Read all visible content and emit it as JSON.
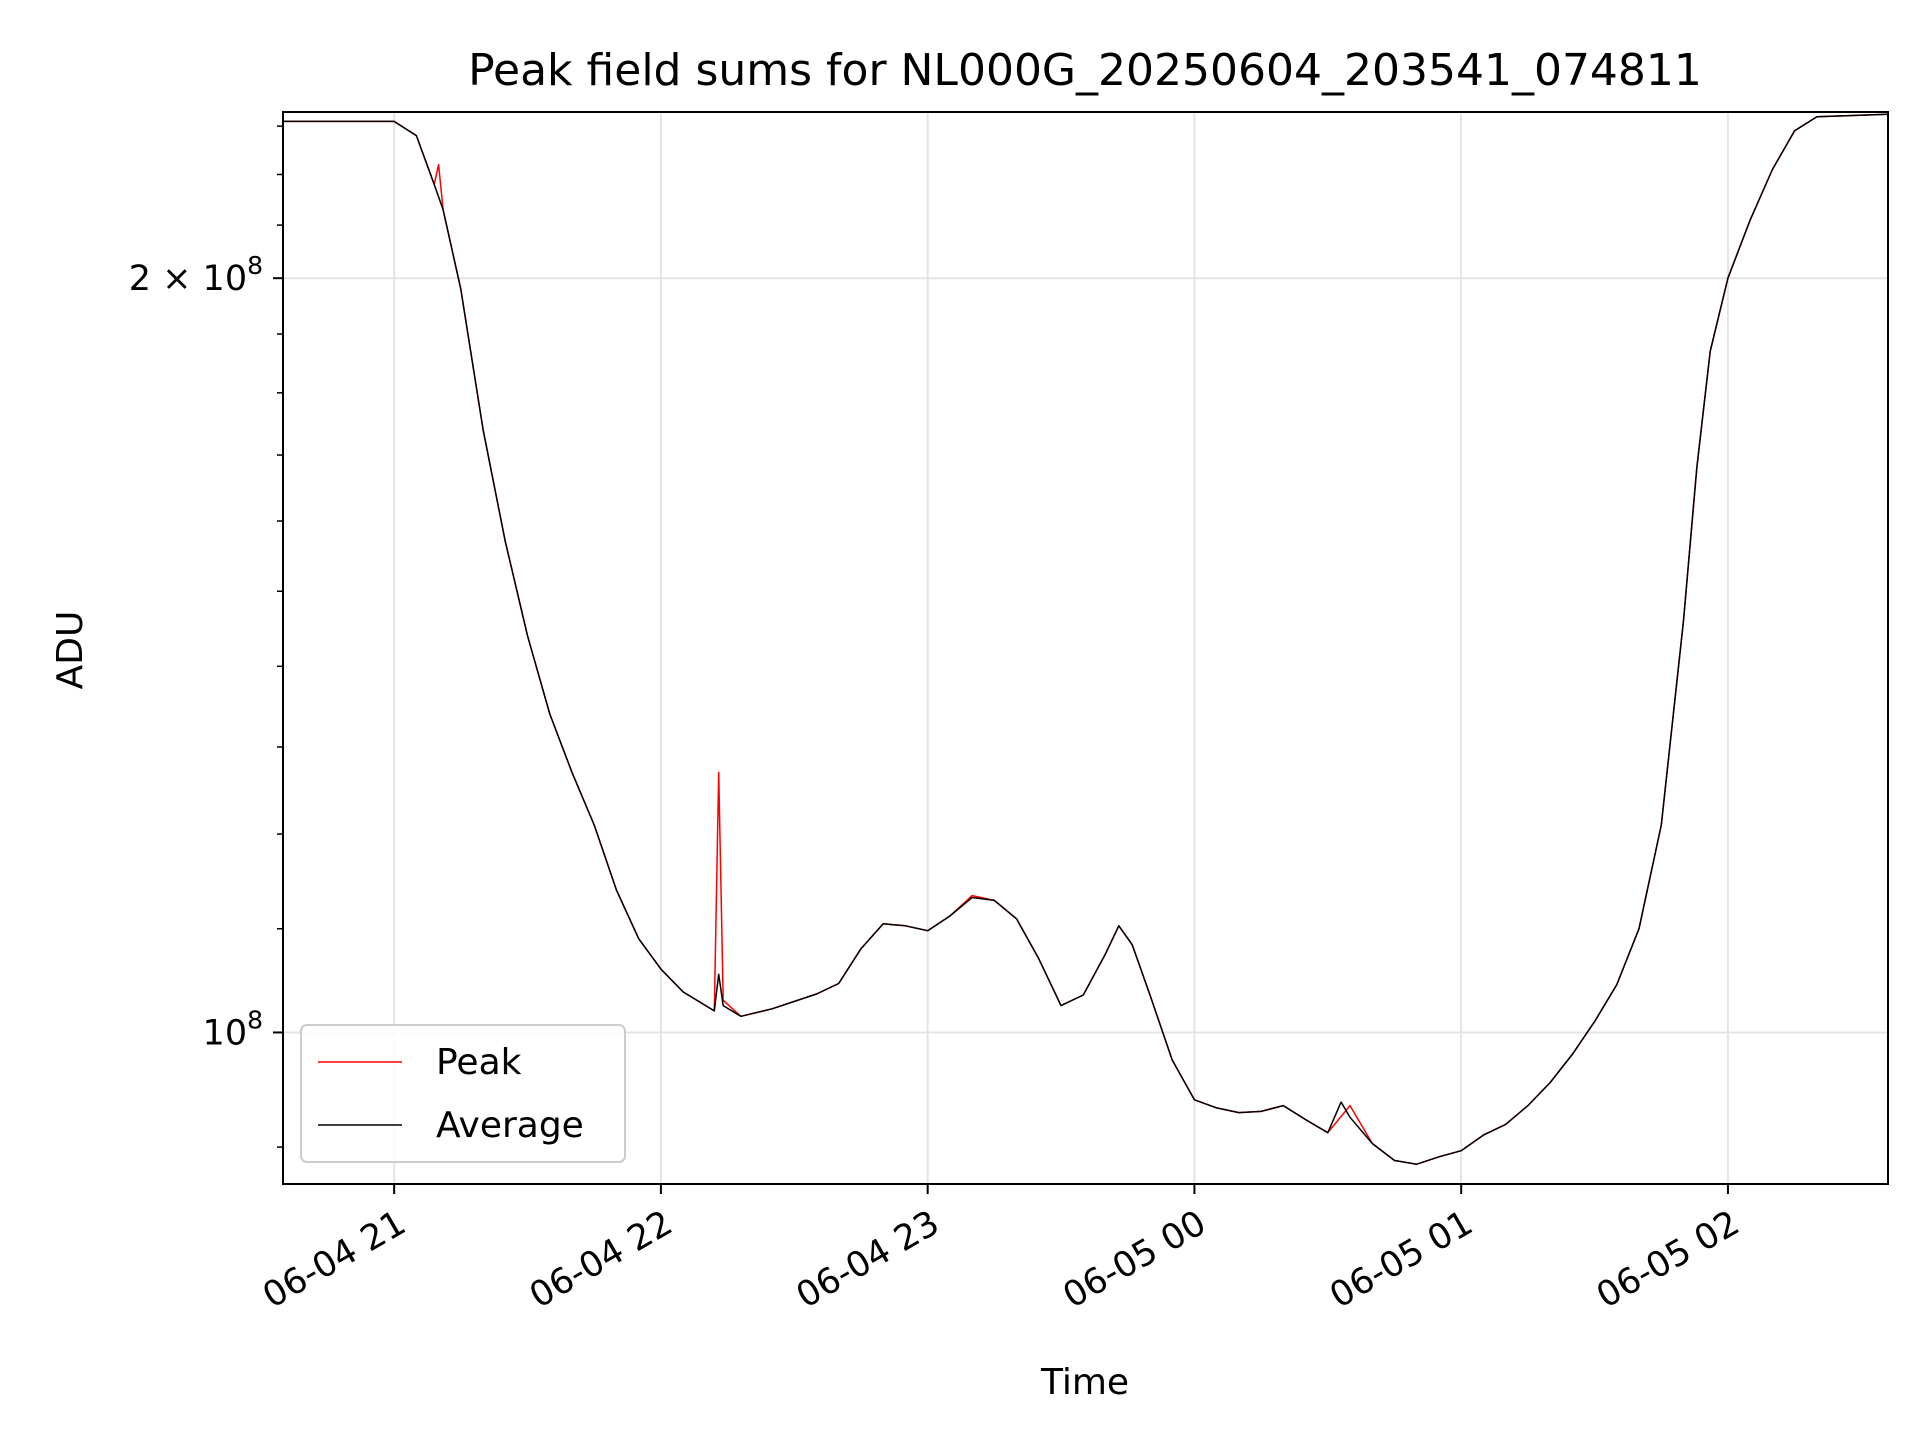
{
  "chart_data": {
    "type": "line",
    "title": "Peak field sums for NL000G_20250604_203541_074811",
    "xlabel": "Time",
    "ylabel": "ADU",
    "yscale": "log",
    "grid": true,
    "legend_position": "lower-left",
    "xlim": [
      "2025-06-04 20:35",
      "2025-06-05 02:36"
    ],
    "ylim": [
      87000000,
      233000000
    ],
    "x_ticks": [
      {
        "label": "06-04 21",
        "t": "2025-06-04 21:00"
      },
      {
        "label": "06-04 22",
        "t": "2025-06-04 22:00"
      },
      {
        "label": "06-04 23",
        "t": "2025-06-04 23:00"
      },
      {
        "label": "06-05 00",
        "t": "2025-06-05 00:00"
      },
      {
        "label": "06-05 01",
        "t": "2025-06-05 01:00"
      },
      {
        "label": "06-05 02",
        "t": "2025-06-05 02:00"
      }
    ],
    "y_ticks": [
      {
        "base": "10",
        "exp": "8",
        "coef": "",
        "value": 100000000
      },
      {
        "base": "10",
        "exp": "8",
        "coef": "2",
        "value": 200000000
      }
    ],
    "series": [
      {
        "name": "Peak",
        "color": "#ff0000",
        "points": [
          [
            "2025-06-04 20:35",
            231000000
          ],
          [
            "2025-06-04 21:00",
            231000000
          ],
          [
            "2025-06-04 21:05",
            228000000
          ],
          [
            "2025-06-04 21:09",
            218000000
          ],
          [
            "2025-06-04 21:10",
            222000000
          ],
          [
            "2025-06-04 21:11",
            213000000
          ],
          [
            "2025-06-04 21:15",
            198000000
          ],
          [
            "2025-06-04 21:20",
            174000000
          ],
          [
            "2025-06-04 21:25",
            157000000
          ],
          [
            "2025-06-04 21:30",
            144000000
          ],
          [
            "2025-06-04 21:35",
            134000000
          ],
          [
            "2025-06-04 21:40",
            127000000
          ],
          [
            "2025-06-04 21:45",
            121000000
          ],
          [
            "2025-06-04 21:50",
            114000000
          ],
          [
            "2025-06-04 21:55",
            109000000
          ],
          [
            "2025-06-04 22:00",
            106000000
          ],
          [
            "2025-06-04 22:05",
            103800000
          ],
          [
            "2025-06-04 22:12",
            102000000
          ],
          [
            "2025-06-04 22:13",
            127000000
          ],
          [
            "2025-06-04 22:14",
            103000000
          ],
          [
            "2025-06-04 22:18",
            101500000
          ],
          [
            "2025-06-04 22:25",
            102200000
          ],
          [
            "2025-06-04 22:35",
            103600000
          ],
          [
            "2025-06-04 22:40",
            104600000
          ],
          [
            "2025-06-04 22:45",
            108000000
          ],
          [
            "2025-06-04 22:50",
            110500000
          ],
          [
            "2025-06-04 22:55",
            110300000
          ],
          [
            "2025-06-04 23:00",
            109800000
          ],
          [
            "2025-06-04 23:05",
            111300000
          ],
          [
            "2025-06-04 23:10",
            113400000
          ],
          [
            "2025-06-04 23:15",
            112900000
          ],
          [
            "2025-06-04 23:20",
            111000000
          ],
          [
            "2025-06-04 23:25",
            107000000
          ],
          [
            "2025-06-04 23:30",
            102500000
          ],
          [
            "2025-06-04 23:35",
            103500000
          ],
          [
            "2025-06-04 23:40",
            107500000
          ],
          [
            "2025-06-04 23:43",
            110300000
          ],
          [
            "2025-06-04 23:46",
            108400000
          ],
          [
            "2025-06-04 23:50",
            103500000
          ],
          [
            "2025-06-04 23:55",
            97500000
          ],
          [
            "2025-06-05 00:00",
            94000000
          ],
          [
            "2025-06-05 00:05",
            93300000
          ],
          [
            "2025-06-05 00:10",
            92900000
          ],
          [
            "2025-06-05 00:15",
            93000000
          ],
          [
            "2025-06-05 00:20",
            93500000
          ],
          [
            "2025-06-05 00:25",
            92300000
          ],
          [
            "2025-06-05 00:30",
            91200000
          ],
          [
            "2025-06-05 00:35",
            93500000
          ],
          [
            "2025-06-05 00:40",
            90300000
          ],
          [
            "2025-06-05 00:45",
            88900000
          ],
          [
            "2025-06-05 00:50",
            88600000
          ],
          [
            "2025-06-05 00:55",
            89200000
          ],
          [
            "2025-06-05 01:00",
            89700000
          ],
          [
            "2025-06-05 01:05",
            91000000
          ],
          [
            "2025-06-05 01:10",
            91900000
          ],
          [
            "2025-06-05 01:15",
            93500000
          ],
          [
            "2025-06-05 01:20",
            95500000
          ],
          [
            "2025-06-05 01:25",
            98000000
          ],
          [
            "2025-06-05 01:30",
            101000000
          ],
          [
            "2025-06-05 01:35",
            104500000
          ],
          [
            "2025-06-05 01:40",
            110000000
          ],
          [
            "2025-06-05 01:45",
            121000000
          ],
          [
            "2025-06-05 01:50",
            146000000
          ],
          [
            "2025-06-05 01:53",
            168000000
          ],
          [
            "2025-06-05 01:56",
            187000000
          ],
          [
            "2025-06-05 02:00",
            200000000
          ],
          [
            "2025-06-05 02:05",
            211000000
          ],
          [
            "2025-06-05 02:10",
            221000000
          ],
          [
            "2025-06-05 02:15",
            229000000
          ],
          [
            "2025-06-05 02:20",
            232000000
          ],
          [
            "2025-06-05 02:36",
            232500000
          ]
        ]
      },
      {
        "name": "Average",
        "color": "#000000",
        "points": [
          [
            "2025-06-04 20:35",
            231000000
          ],
          [
            "2025-06-04 21:00",
            231000000
          ],
          [
            "2025-06-04 21:05",
            228000000
          ],
          [
            "2025-06-04 21:09",
            218000000
          ],
          [
            "2025-06-04 21:11",
            213000000
          ],
          [
            "2025-06-04 21:15",
            198000000
          ],
          [
            "2025-06-04 21:20",
            174000000
          ],
          [
            "2025-06-04 21:25",
            157000000
          ],
          [
            "2025-06-04 21:30",
            144000000
          ],
          [
            "2025-06-04 21:35",
            134000000
          ],
          [
            "2025-06-04 21:40",
            127000000
          ],
          [
            "2025-06-04 21:45",
            121000000
          ],
          [
            "2025-06-04 21:50",
            114000000
          ],
          [
            "2025-06-04 21:55",
            109000000
          ],
          [
            "2025-06-04 22:00",
            106000000
          ],
          [
            "2025-06-04 22:05",
            103800000
          ],
          [
            "2025-06-04 22:12",
            102000000
          ],
          [
            "2025-06-04 22:13",
            105500000
          ],
          [
            "2025-06-04 22:14",
            102500000
          ],
          [
            "2025-06-04 22:18",
            101500000
          ],
          [
            "2025-06-04 22:25",
            102200000
          ],
          [
            "2025-06-04 22:35",
            103600000
          ],
          [
            "2025-06-04 22:40",
            104600000
          ],
          [
            "2025-06-04 22:45",
            108000000
          ],
          [
            "2025-06-04 22:50",
            110500000
          ],
          [
            "2025-06-04 22:55",
            110300000
          ],
          [
            "2025-06-04 23:00",
            109800000
          ],
          [
            "2025-06-04 23:05",
            111300000
          ],
          [
            "2025-06-04 23:10",
            113200000
          ],
          [
            "2025-06-04 23:15",
            112900000
          ],
          [
            "2025-06-04 23:20",
            111000000
          ],
          [
            "2025-06-04 23:25",
            107000000
          ],
          [
            "2025-06-04 23:30",
            102500000
          ],
          [
            "2025-06-04 23:35",
            103500000
          ],
          [
            "2025-06-04 23:40",
            107500000
          ],
          [
            "2025-06-04 23:43",
            110300000
          ],
          [
            "2025-06-04 23:46",
            108400000
          ],
          [
            "2025-06-04 23:50",
            103500000
          ],
          [
            "2025-06-04 23:55",
            97500000
          ],
          [
            "2025-06-05 00:00",
            94000000
          ],
          [
            "2025-06-05 00:05",
            93300000
          ],
          [
            "2025-06-05 00:10",
            92900000
          ],
          [
            "2025-06-05 00:15",
            93000000
          ],
          [
            "2025-06-05 00:20",
            93500000
          ],
          [
            "2025-06-05 00:25",
            92300000
          ],
          [
            "2025-06-05 00:30",
            91200000
          ],
          [
            "2025-06-05 00:33",
            93800000
          ],
          [
            "2025-06-05 00:35",
            92500000
          ],
          [
            "2025-06-05 00:40",
            90300000
          ],
          [
            "2025-06-05 00:45",
            88900000
          ],
          [
            "2025-06-05 00:50",
            88600000
          ],
          [
            "2025-06-05 00:55",
            89200000
          ],
          [
            "2025-06-05 01:00",
            89700000
          ],
          [
            "2025-06-05 01:05",
            91000000
          ],
          [
            "2025-06-05 01:10",
            91900000
          ],
          [
            "2025-06-05 01:15",
            93500000
          ],
          [
            "2025-06-05 01:20",
            95500000
          ],
          [
            "2025-06-05 01:25",
            98000000
          ],
          [
            "2025-06-05 01:30",
            101000000
          ],
          [
            "2025-06-05 01:35",
            104500000
          ],
          [
            "2025-06-05 01:40",
            110000000
          ],
          [
            "2025-06-05 01:45",
            121000000
          ],
          [
            "2025-06-05 01:50",
            146000000
          ],
          [
            "2025-06-05 01:53",
            168000000
          ],
          [
            "2025-06-05 01:56",
            187000000
          ],
          [
            "2025-06-05 02:00",
            200000000
          ],
          [
            "2025-06-05 02:05",
            211000000
          ],
          [
            "2025-06-05 02:10",
            221000000
          ],
          [
            "2025-06-05 02:15",
            229000000
          ],
          [
            "2025-06-05 02:20",
            232000000
          ],
          [
            "2025-06-05 02:36",
            232500000
          ]
        ]
      }
    ]
  }
}
